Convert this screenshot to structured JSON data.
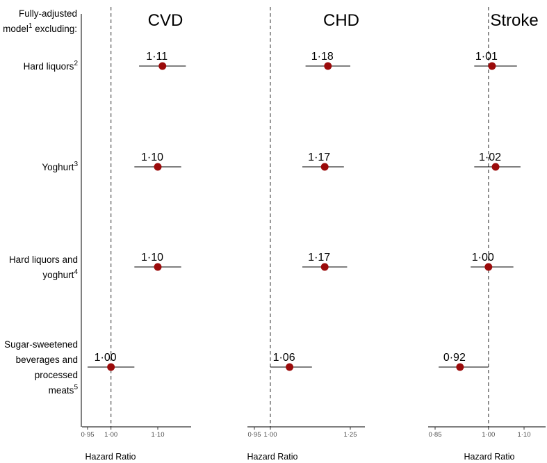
{
  "chart_data": {
    "type": "forest",
    "header": {
      "line1": "Fully-adjusted",
      "line2_prefix": "model",
      "line2_sup": "1",
      "line2_suffix": " excluding:"
    },
    "rows": [
      {
        "lines": [
          {
            "text": "Hard liquors",
            "sup": "2"
          }
        ]
      },
      {
        "lines": [
          {
            "text": "Yoghurt",
            "sup": "3"
          }
        ]
      },
      {
        "lines": [
          {
            "text": "Hard liquors and",
            "sup": ""
          },
          {
            "text": "yoghurt",
            "sup": "4"
          }
        ]
      },
      {
        "lines": [
          {
            "text": "Sugar-sweetened",
            "sup": ""
          },
          {
            "text": "beverages and",
            "sup": ""
          },
          {
            "text": "processed",
            "sup": ""
          },
          {
            "text": "meats",
            "sup": "5"
          }
        ]
      }
    ],
    "xlabel": "Hazard Ratio",
    "marker_color": "#9b0b0b",
    "reference_line": 1.0,
    "panels": [
      {
        "title": "CVD",
        "xlim": [
          0.93,
          1.19
        ],
        "ticks": [
          {
            "v": 0.95,
            "label": "0·95"
          },
          {
            "v": 1.0,
            "label": "1·00"
          },
          {
            "v": 1.1,
            "label": "1·10"
          }
        ],
        "estimates": [
          {
            "hr": 1.11,
            "lo": 1.06,
            "hi": 1.16,
            "label": "1·11"
          },
          {
            "hr": 1.1,
            "lo": 1.05,
            "hi": 1.15,
            "label": "1·10"
          },
          {
            "hr": 1.1,
            "lo": 1.05,
            "hi": 1.15,
            "label": "1·10"
          },
          {
            "hr": 1.0,
            "lo": 0.95,
            "hi": 1.05,
            "label": "1·00"
          }
        ]
      },
      {
        "title": "CHD",
        "xlim": [
          0.93,
          1.285
        ],
        "ticks": [
          {
            "v": 0.95,
            "label": "0·95"
          },
          {
            "v": 1.0,
            "label": "1·00"
          },
          {
            "v": 1.25,
            "label": "1·25"
          }
        ],
        "estimates": [
          {
            "hr": 1.18,
            "lo": 1.11,
            "hi": 1.25,
            "label": "1·18"
          },
          {
            "hr": 1.17,
            "lo": 1.1,
            "hi": 1.23,
            "label": "1·17"
          },
          {
            "hr": 1.17,
            "lo": 1.1,
            "hi": 1.24,
            "label": "1·17"
          },
          {
            "hr": 1.06,
            "lo": 1.0,
            "hi": 1.13,
            "label": "1·06"
          }
        ]
      },
      {
        "title": "Stroke",
        "xlim": [
          0.85,
          1.12
        ],
        "ticks": [
          {
            "v": 0.85,
            "label": "0·85"
          },
          {
            "v": 1.0,
            "label": "1·00"
          },
          {
            "v": 1.1,
            "label": "1·10"
          }
        ],
        "estimates": [
          {
            "hr": 1.01,
            "lo": 0.96,
            "hi": 1.08,
            "label": "1·01"
          },
          {
            "hr": 1.02,
            "lo": 0.96,
            "hi": 1.09,
            "label": "1·02"
          },
          {
            "hr": 1.0,
            "lo": 0.95,
            "hi": 1.07,
            "label": "1·00"
          },
          {
            "hr": 0.92,
            "lo": 0.86,
            "hi": 1.0,
            "label": "0·92"
          }
        ]
      }
    ]
  }
}
